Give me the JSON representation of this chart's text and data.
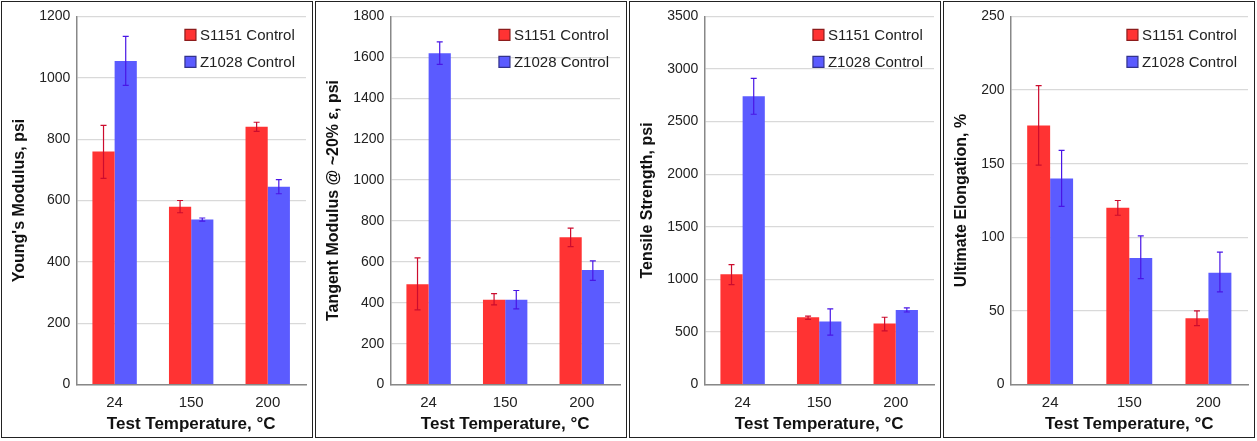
{
  "chart_data": [
    {
      "type": "bar",
      "ylabel": "Young's Modulus, psi",
      "xlabel": "Test Temperature, °C",
      "categories": [
        "24",
        "150",
        "200"
      ],
      "series": [
        {
          "name": "S1151 Control",
          "color": "#ff3333",
          "values": [
            760,
            580,
            840
          ],
          "errors": [
            [
              672,
              845
            ],
            [
              560,
              600
            ],
            [
              825,
              855
            ]
          ]
        },
        {
          "name": "Z1028 Control",
          "color": "#5b5bff",
          "values": [
            1055,
            538,
            645
          ],
          "errors": [
            [
              975,
              1135
            ],
            [
              533,
              543
            ],
            [
              622,
              668
            ]
          ]
        }
      ],
      "ylim": [
        0,
        1200
      ],
      "yticks": [
        0,
        200,
        400,
        600,
        800,
        1000,
        1200
      ],
      "grid": "y",
      "legend": "top right"
    },
    {
      "type": "bar",
      "ylabel": "Tangent Modulus @ ~20% ε, psi",
      "xlabel": "Test Temperature, °C",
      "categories": [
        "24",
        "150",
        "200"
      ],
      "series": [
        {
          "name": "S1151 Control",
          "color": "#ff3333",
          "values": [
            490,
            415,
            720
          ],
          "errors": [
            [
              365,
              620
            ],
            [
              390,
              445
            ],
            [
              675,
              765
            ]
          ]
        },
        {
          "name": "Z1028 Control",
          "color": "#5b5bff",
          "values": [
            1620,
            415,
            560
          ],
          "errors": [
            [
              1565,
              1675
            ],
            [
              370,
              460
            ],
            [
              510,
              605
            ]
          ]
        }
      ],
      "ylim": [
        0,
        1800
      ],
      "yticks": [
        0,
        200,
        400,
        600,
        800,
        1000,
        1200,
        1400,
        1600,
        1800
      ],
      "grid": "y",
      "legend": "top right"
    },
    {
      "type": "bar",
      "ylabel": "Tensile Strength, psi",
      "xlabel": "Test Temperature, °C",
      "categories": [
        "24",
        "150",
        "200"
      ],
      "series": [
        {
          "name": "S1151 Control",
          "color": "#ff3333",
          "values": [
            1050,
            640,
            580
          ],
          "errors": [
            [
              950,
              1140
            ],
            [
              620,
              650
            ],
            [
              510,
              640
            ]
          ]
        },
        {
          "name": "Z1028 Control",
          "color": "#5b5bff",
          "values": [
            2740,
            600,
            710
          ],
          "errors": [
            [
              2570,
              2910
            ],
            [
              470,
              720
            ],
            [
              690,
              730
            ]
          ]
        }
      ],
      "ylim": [
        0,
        3500
      ],
      "yticks": [
        0,
        500,
        1000,
        1500,
        2000,
        2500,
        3000,
        3500
      ],
      "grid": "y",
      "legend": "top right"
    },
    {
      "type": "bar",
      "ylabel": "Ultimate Elongation, %",
      "xlabel": "Test Temperature, °C",
      "categories": [
        "24",
        "150",
        "200"
      ],
      "series": [
        {
          "name": "S1151 Control",
          "color": "#ff3333",
          "values": [
            176,
            120,
            45
          ],
          "errors": [
            [
              149,
              203
            ],
            [
              115,
              125
            ],
            [
              40,
              50
            ]
          ]
        },
        {
          "name": "Z1028 Control",
          "color": "#5b5bff",
          "values": [
            140,
            86,
            76
          ],
          "errors": [
            [
              121,
              159
            ],
            [
              72,
              101
            ],
            [
              63,
              90
            ]
          ]
        }
      ],
      "ylim": [
        0,
        250
      ],
      "yticks": [
        0,
        50,
        100,
        150,
        200,
        250
      ],
      "grid": "y",
      "legend": "top right"
    }
  ]
}
